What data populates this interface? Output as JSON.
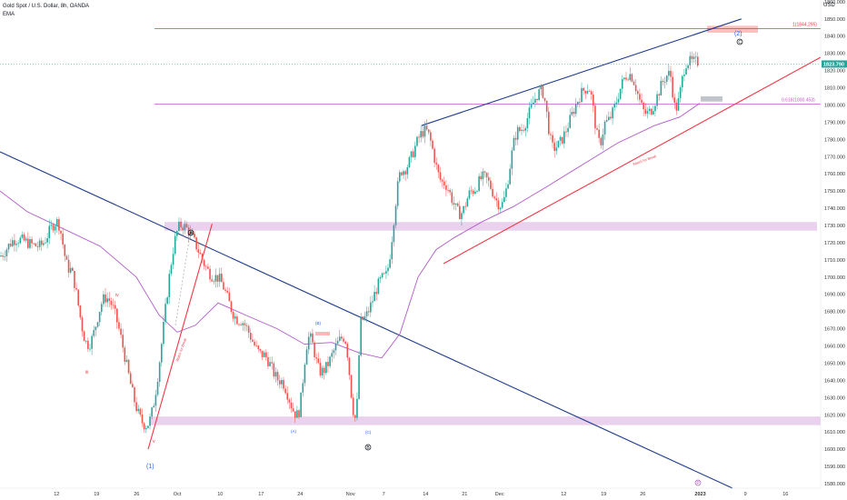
{
  "header": {
    "title": "Gold Spot / U.S. Dollar, 8h, OANDA",
    "indicator": "EMA"
  },
  "price_axis": {
    "currency": "USD",
    "ticks": [
      "1860.000",
      "1850.000",
      "1840.000",
      "1830.000",
      "1820.000",
      "1810.000",
      "1800.000",
      "1790.000",
      "1780.000",
      "1770.000",
      "1760.000",
      "1750.000",
      "1740.000",
      "1730.000",
      "1720.000",
      "1710.000",
      "1700.000",
      "1690.000",
      "1680.000",
      "1670.000",
      "1660.000",
      "1650.000",
      "1640.000",
      "1630.000",
      "1620.000",
      "1610.000",
      "1600.000",
      "1590.000",
      "1580.000"
    ],
    "last_price_label": "1823.790"
  },
  "time_axis": {
    "ticks": [
      "12",
      "19",
      "26",
      "Oct",
      "10",
      "17",
      "24",
      "Nov",
      "7",
      "14",
      "21",
      "Dec",
      "12",
      "19",
      "26",
      "2023",
      "9",
      "16"
    ]
  },
  "annotations": {
    "fib_upper_label": "1(1844.295)",
    "fib_lower_label": "0.618(1800.453)",
    "wave_2": "(2)",
    "wave_1": "(1)",
    "wave_c_top": "C",
    "wave_a": "A",
    "wave_b": "B",
    "wave_b_small": "(B)",
    "wave_a_small": "(A)",
    "wave_c_small": "(C)",
    "wave_iv": "iv",
    "wave_iii": "iii",
    "wave_v": "v",
    "wave_p": "P",
    "diag_text_1": "Watch for Break",
    "diag_text_2": "Watch for Break"
  },
  "colors": {
    "up": "#26a69a",
    "down": "#ef5350",
    "ema": "#b05ac9",
    "trend_blue": "#1f3c88",
    "trend_red": "#f23645",
    "zone_purple": "#e1bee7",
    "zone_red": "#f8a5a5",
    "zone_gray": "#b2b5be",
    "last_price": "#26a69a"
  },
  "chart_data": {
    "type": "candlestick",
    "title": "Gold Spot / U.S. Dollar, 8h, OANDA",
    "ylim": [
      1578,
      1866
    ],
    "y_ticks": [
      1580,
      1590,
      1600,
      1610,
      1620,
      1630,
      1640,
      1650,
      1660,
      1670,
      1680,
      1690,
      1700,
      1710,
      1720,
      1730,
      1740,
      1750,
      1760,
      1770,
      1780,
      1790,
      1800,
      1810,
      1820,
      1830,
      1840,
      1850,
      1860
    ],
    "x_tick_labels": [
      "12",
      "19",
      "26",
      "Oct",
      "10",
      "17",
      "24",
      "Nov",
      "7",
      "14",
      "21",
      "Dec",
      "12",
      "19",
      "26",
      "2023",
      "9",
      "16"
    ],
    "last_price": 1823.79,
    "horizontal_levels": [
      {
        "label": "1(1844.295)",
        "value": 1844.295
      },
      {
        "label": "0.618(1800.453)",
        "value": 1800.453
      },
      {
        "label": "",
        "value": 1823.79
      }
    ],
    "zones": [
      {
        "from": 1727,
        "to": 1732
      },
      {
        "from": 1614,
        "to": 1619
      },
      {
        "from": 1842,
        "to": 1846
      },
      {
        "from": 1802,
        "to": 1805
      }
    ],
    "pivots": [
      {
        "x": "Sep 7",
        "y": 1708
      },
      {
        "x": "Sep 13",
        "y": 1736
      },
      {
        "x": "Sep 18",
        "y": 1661
      },
      {
        "x": "Sep 21",
        "y": 1688
      },
      {
        "x": "Sep 28",
        "y": 1614
      },
      {
        "x": "Oct 4",
        "y": 1730
      },
      {
        "x": "Oct 10",
        "y": 1700
      },
      {
        "x": "Oct 14",
        "y": 1675
      },
      {
        "x": "Oct 18",
        "y": 1655
      },
      {
        "x": "Oct 21",
        "y": 1640
      },
      {
        "x": "Oct 24",
        "y": 1620
      },
      {
        "x": "Oct 26",
        "y": 1665
      },
      {
        "x": "Oct 28",
        "y": 1645
      },
      {
        "x": "Nov 1",
        "y": 1665
      },
      {
        "x": "Nov 3",
        "y": 1618
      },
      {
        "x": "Nov 4",
        "y": 1675
      },
      {
        "x": "Nov 8",
        "y": 1700
      },
      {
        "x": "Nov 11",
        "y": 1762
      },
      {
        "x": "Nov 15",
        "y": 1785
      },
      {
        "x": "Nov 18",
        "y": 1755
      },
      {
        "x": "Nov 21",
        "y": 1737
      },
      {
        "x": "Nov 23",
        "y": 1750
      },
      {
        "x": "Nov 25",
        "y": 1758
      },
      {
        "x": "Nov 28",
        "y": 1742
      },
      {
        "x": "Dec 1",
        "y": 1785
      },
      {
        "x": "Dec 5",
        "y": 1808
      },
      {
        "x": "Dec 7",
        "y": 1775
      },
      {
        "x": "Dec 13",
        "y": 1810
      },
      {
        "x": "Dec 15",
        "y": 1778
      },
      {
        "x": "Dec 16",
        "y": 1790
      },
      {
        "x": "Dec 20",
        "y": 1818
      },
      {
        "x": "Dec 23",
        "y": 1795
      },
      {
        "x": "Dec 27",
        "y": 1818
      },
      {
        "x": "Dec 28",
        "y": 1798
      },
      {
        "x": "Dec 30",
        "y": 1825
      }
    ],
    "ema_points": [
      {
        "x": "Sep 6",
        "y": 1743
      },
      {
        "x": "Sep 10",
        "y": 1728
      },
      {
        "x": "Sep 14",
        "y": 1717
      },
      {
        "x": "Sep 18",
        "y": 1708
      },
      {
        "x": "Sep 23",
        "y": 1688
      },
      {
        "x": "Sep 27",
        "y": 1672
      },
      {
        "x": "Oct 1",
        "y": 1668
      },
      {
        "x": "Oct 5",
        "y": 1680
      },
      {
        "x": "Oct 10",
        "y": 1686
      },
      {
        "x": "Oct 14",
        "y": 1677
      },
      {
        "x": "Oct 19",
        "y": 1670
      },
      {
        "x": "Oct 24",
        "y": 1662
      },
      {
        "x": "Oct 28",
        "y": 1662
      },
      {
        "x": "Nov 2",
        "y": 1658
      },
      {
        "x": "Nov 5",
        "y": 1655
      },
      {
        "x": "Nov 9",
        "y": 1665
      },
      {
        "x": "Nov 12",
        "y": 1700
      },
      {
        "x": "Nov 16",
        "y": 1720
      },
      {
        "x": "Nov 20",
        "y": 1729
      },
      {
        "x": "Nov 25",
        "y": 1738
      },
      {
        "x": "Nov 30",
        "y": 1745
      },
      {
        "x": "Dec 5",
        "y": 1757
      },
      {
        "x": "Dec 10",
        "y": 1766
      },
      {
        "x": "Dec 15",
        "y": 1775
      },
      {
        "x": "Dec 20",
        "y": 1784
      },
      {
        "x": "Dec 25",
        "y": 1790
      },
      {
        "x": "Dec 30",
        "y": 1800
      }
    ],
    "trend_lines": [
      {
        "name": "",
        "from": {
          "x": "Aug 26",
          "y": 1785
        },
        "to": {
          "x": "Jan 14",
          "y": 1579
        }
      },
      {
        "name": "",
        "from": {
          "x": "Nov 14",
          "y": 1788
        },
        "to": {
          "x": "Jan 8",
          "y": 1850
        }
      },
      {
        "name": "",
        "from": {
          "x": "Nov 17",
          "y": 1722
        },
        "to": {
          "x": "Jan 20",
          "y": 1838
        }
      },
      {
        "name": "",
        "from": {
          "x": "Sep 28",
          "y": 1600
        },
        "to": {
          "x": "Oct 9",
          "y": 1731
        }
      }
    ]
  }
}
